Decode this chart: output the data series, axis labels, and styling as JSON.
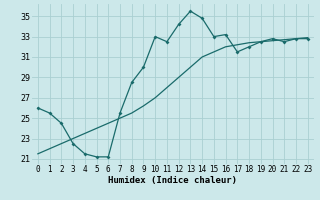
{
  "xlabel": "Humidex (Indice chaleur)",
  "ylabel": "",
  "bg_color": "#cce8ea",
  "grid_color": "#aacfd2",
  "line_color": "#1a6b6b",
  "xlim": [
    -0.5,
    23.5
  ],
  "ylim": [
    20.5,
    36.2
  ],
  "xticks": [
    0,
    1,
    2,
    3,
    4,
    5,
    6,
    7,
    8,
    9,
    10,
    11,
    12,
    13,
    14,
    15,
    16,
    17,
    18,
    19,
    20,
    21,
    22,
    23
  ],
  "yticks": [
    21,
    23,
    25,
    27,
    29,
    31,
    33,
    35
  ],
  "series1_x": [
    0,
    1,
    2,
    3,
    4,
    5,
    6,
    7,
    8,
    9,
    10,
    11,
    12,
    13,
    14,
    15,
    16,
    17,
    18,
    19,
    20,
    21,
    22,
    23
  ],
  "series1_y": [
    26.0,
    25.5,
    24.5,
    22.5,
    21.5,
    21.2,
    21.2,
    25.5,
    28.5,
    30.0,
    33.0,
    32.5,
    34.2,
    35.5,
    34.8,
    33.0,
    33.2,
    31.5,
    32.0,
    32.5,
    32.8,
    32.5,
    32.8,
    32.8
  ],
  "series2_x": [
    0,
    1,
    2,
    3,
    4,
    5,
    6,
    7,
    8,
    9,
    10,
    11,
    12,
    13,
    14,
    15,
    16,
    17,
    18,
    19,
    20,
    21,
    22,
    23
  ],
  "series2_y": [
    21.5,
    22.0,
    22.5,
    23.0,
    23.5,
    24.0,
    24.5,
    25.0,
    25.5,
    26.2,
    27.0,
    28.0,
    29.0,
    30.0,
    31.0,
    31.5,
    32.0,
    32.2,
    32.4,
    32.5,
    32.6,
    32.7,
    32.8,
    32.9
  ],
  "xlabel_fontsize": 6.5,
  "tick_fontsize": 5.5
}
